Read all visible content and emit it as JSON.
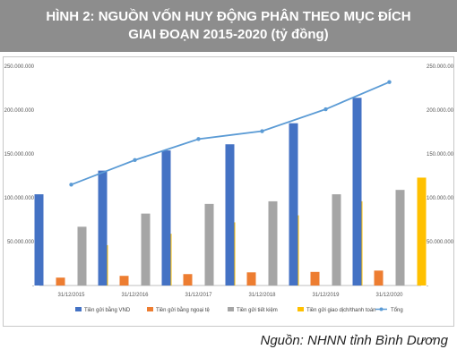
{
  "header": {
    "title_line1": "HÌNH 2: NGUỒN VỐN HUY ĐỘNG PHÂN THEO MỤC ĐÍCH",
    "title_line2": "GIAI ĐOẠN 2015-2020 (tỷ đồng)"
  },
  "source": "Nguồn: NHNN tỉnh Bình Dương",
  "chart_data": {
    "type": "bar",
    "categories": [
      "31/12/2015",
      "31/12/2016",
      "31/12/2017",
      "31/12/2018",
      "31/12/2019",
      "31/12/2020"
    ],
    "ylim": [
      0,
      250000000
    ],
    "yticks": [
      0,
      50000000,
      100000000,
      150000000,
      200000000,
      250000000
    ],
    "ytick_labels": [
      "-",
      "50.000.000",
      "100.000.000",
      "150.000.000",
      "200.000.000",
      "250.000.000"
    ],
    "series": [
      {
        "name": "Tiền gửi bằng VND",
        "kind": "bar",
        "color": "#4472c4",
        "values": [
          104000000,
          131000000,
          154000000,
          161000000,
          185000000,
          214000000
        ]
      },
      {
        "name": "Tiền gửi bằng ngoại tệ",
        "kind": "bar",
        "color": "#ed7d31",
        "values": [
          9000000,
          11000000,
          13000000,
          15000000,
          15500000,
          17000000
        ]
      },
      {
        "name": "Tiền gửi tiết kiệm",
        "kind": "bar",
        "color": "#a5a5a5",
        "values": [
          67000000,
          82000000,
          93000000,
          96000000,
          104000000,
          109000000
        ]
      },
      {
        "name": "Tiền gửi giao dịch/thanh toán",
        "kind": "bar",
        "color": "#ffc000",
        "values": [
          46000000,
          59000000,
          72000000,
          80000000,
          96000000,
          123000000
        ]
      },
      {
        "name": "Tổng",
        "kind": "line",
        "color": "#5b9bd5",
        "values": [
          115000000,
          143000000,
          167000000,
          176000000,
          201000000,
          232000000
        ]
      }
    ],
    "legend_position": "bottom",
    "grid": false
  }
}
